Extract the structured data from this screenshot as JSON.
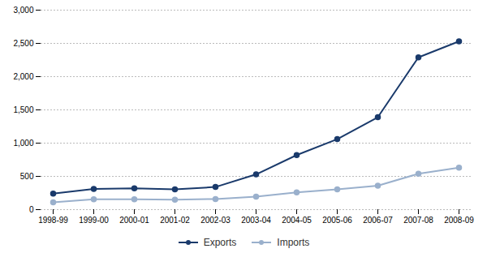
{
  "chart_data": {
    "type": "line",
    "categories": [
      "1998-99",
      "1999-00",
      "2000-01",
      "2001-02",
      "2002-03",
      "2003-04",
      "2004-05",
      "2005-06",
      "2006-07",
      "2007-08",
      "2008-09"
    ],
    "series": [
      {
        "name": "Exports",
        "color": "#1a3a6b",
        "values": [
          240,
          310,
          320,
          305,
          340,
          530,
          820,
          1060,
          1390,
          2290,
          2530
        ]
      },
      {
        "name": "Imports",
        "color": "#9ab0cc",
        "values": [
          110,
          155,
          155,
          150,
          160,
          195,
          260,
          305,
          360,
          540,
          630
        ]
      }
    ],
    "ylim": [
      0,
      3000
    ],
    "yticks": [
      0,
      500,
      {
        "value": 1000,
        "label": "1,000"
      },
      {
        "value": 1500,
        "label": "1,500"
      },
      {
        "value": 2000,
        "label": "2,000"
      },
      {
        "value": 2500,
        "label": "2,500"
      },
      {
        "value": 3000,
        "label": "3,000"
      }
    ],
    "grid": true,
    "legend": "bottom",
    "marker": "circle"
  }
}
